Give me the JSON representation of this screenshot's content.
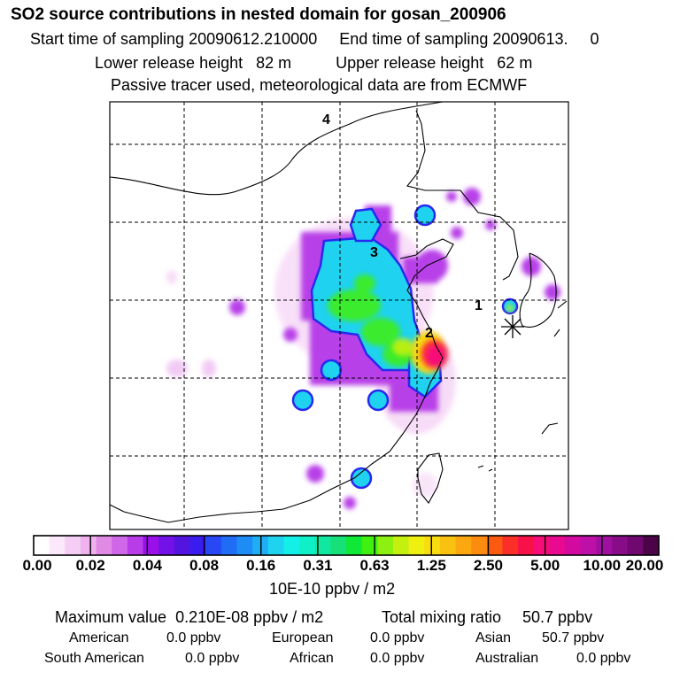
{
  "header": {
    "title": "SO2 source contributions in nested domain for gosan_200906",
    "start_label": "Start time of sampling",
    "start_value": "20090612.210000",
    "end_label": "End time of sampling",
    "end_value": "20090613.",
    "end_suffix": "0",
    "lower_label": "Lower release height",
    "lower_value": "82 m",
    "upper_label": "Upper release height",
    "upper_value": "62 m",
    "note": "Passive tracer used, meteorological data are from ECMWF"
  },
  "map": {
    "region_labels": [
      "4",
      "3",
      "1",
      "2"
    ]
  },
  "colorbar": {
    "ticks": [
      "0.00",
      "0.02",
      "0.04",
      "0.08",
      "0.16",
      "0.31",
      "0.63",
      "1.25",
      "2.50",
      "5.00",
      "10.00",
      "20.00"
    ],
    "colors": [
      "#ffffff",
      "#fbe8fb",
      "#f5cdf5",
      "#efb2ef",
      "#e08ae6",
      "#d066e8",
      "#b83ce8",
      "#9a10e8",
      "#7410e8",
      "#5414e0",
      "#3a1cf0",
      "#2848f5",
      "#1f6cf5",
      "#1e8cf5",
      "#1eaef5",
      "#1ed2f0",
      "#12f0e8",
      "#10f0c8",
      "#10e8a0",
      "#18e078",
      "#10e838",
      "#40f010",
      "#8cf010",
      "#c4f010",
      "#f0f010",
      "#f8dc10",
      "#fac210",
      "#fba810",
      "#fc8c10",
      "#fb5a10",
      "#fa3028",
      "#f81048",
      "#f80c78",
      "#e80a90",
      "#d20aa0",
      "#bc10a8",
      "#a010a0",
      "#880c88",
      "#700870",
      "#4c0448"
    ],
    "units": "10E-10 ppbv / m2"
  },
  "stats": {
    "max_label": "Maximum value",
    "max_value": "0.210E-08 ppbv / m2",
    "total_label": "Total mixing ratio",
    "total_value": "50.7 ppbv",
    "regions": [
      {
        "name": "American",
        "value": "0.0 ppbv"
      },
      {
        "name": "European",
        "value": "0.0 ppbv"
      },
      {
        "name": "Asian",
        "value": "50.7 ppbv"
      },
      {
        "name": "South American",
        "value": "0.0 ppbv"
      },
      {
        "name": "African",
        "value": "0.0 ppbv"
      },
      {
        "name": "Australian",
        "value": "0.0 ppbv"
      }
    ]
  }
}
